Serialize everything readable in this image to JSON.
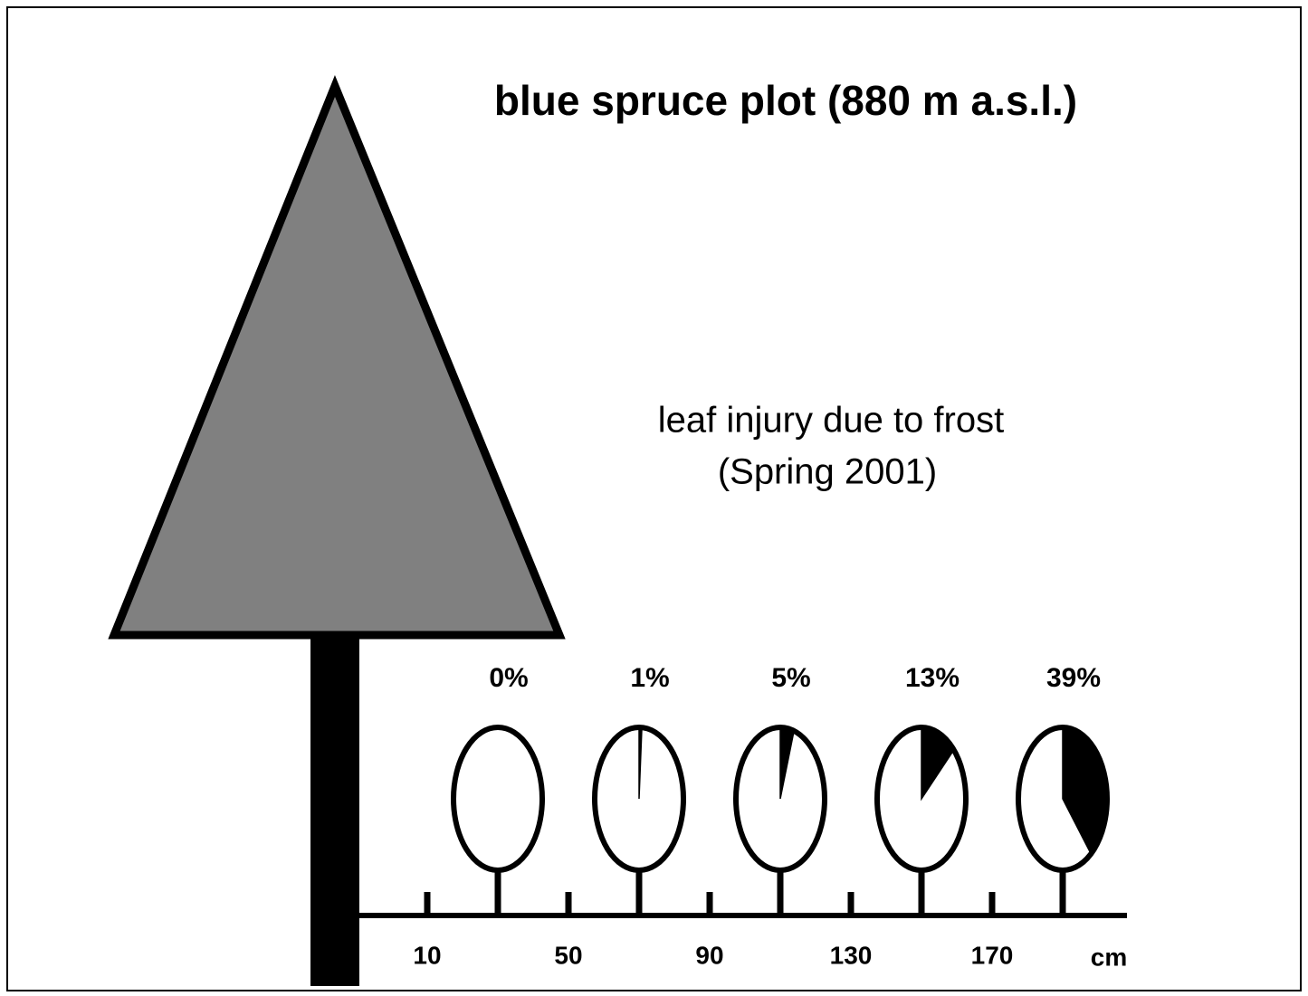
{
  "title": "blue spruce plot (880 m a.s.l.)",
  "subtitle": [
    "leaf injury due to frost",
    "(Spring 2001)"
  ],
  "leaves": [
    {
      "label": "0%",
      "value": 0
    },
    {
      "label": "1%",
      "value": 1
    },
    {
      "label": "5%",
      "value": 5
    },
    {
      "label": "13%",
      "value": 13
    },
    {
      "label": "39%",
      "value": 39
    }
  ],
  "axis": {
    "ticks": [
      10,
      50,
      90,
      130,
      170
    ],
    "unit": "cm"
  }
}
